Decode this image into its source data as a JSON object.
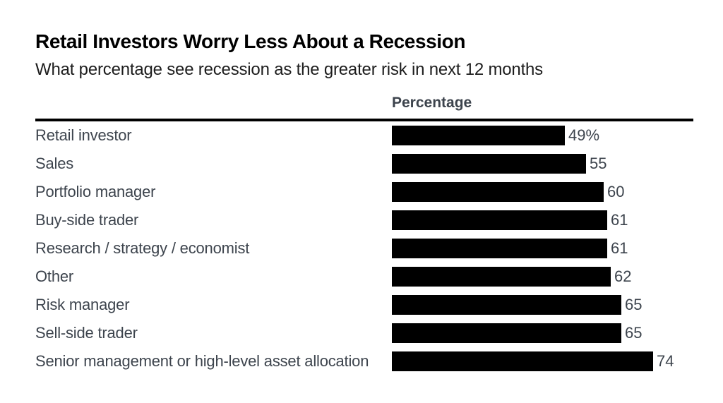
{
  "header": {
    "title": "Retail Investors Worry Less About a Recession",
    "subtitle": "What percentage see recession as the greater risk in next 12 months"
  },
  "chart_data": {
    "type": "bar",
    "orientation": "horizontal",
    "title": "Retail Investors Worry Less About a Recession",
    "subtitle": "What percentage see recession as the greater risk in next 12 months",
    "value_axis_label": "Percentage",
    "categories": [
      "Retail investor",
      "Sales",
      "Portfolio manager",
      "Buy-side trader",
      "Research / strategy / economist",
      "Other",
      "Risk manager",
      "Sell-side trader",
      "Senior management or high-level asset allocation"
    ],
    "values": [
      49,
      55,
      60,
      61,
      61,
      62,
      65,
      65,
      74
    ],
    "value_labels": [
      "49%",
      "55",
      "60",
      "61",
      "61",
      "62",
      "65",
      "65",
      "74"
    ],
    "xlim": [
      0,
      85
    ],
    "grid": false,
    "legend": false,
    "bar_color": "#000000",
    "text_color": "#3d444d",
    "title_color": "#000000",
    "background_color": "#ffffff"
  }
}
